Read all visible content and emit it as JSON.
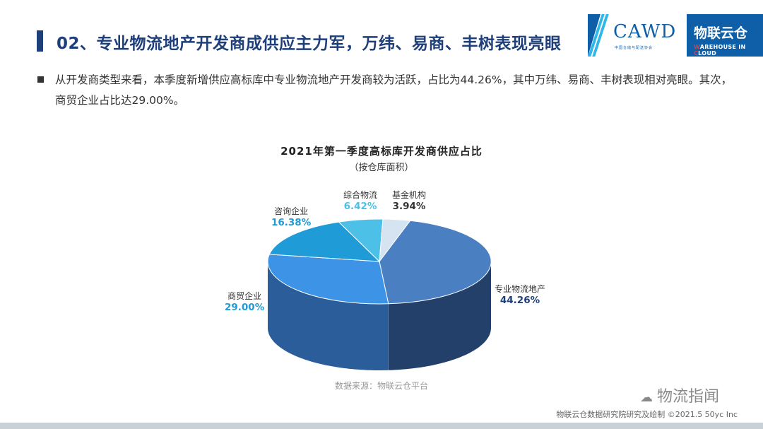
{
  "header": {
    "title": "02、专业物流地产开发商成供应主力军，万纬、易商、丰树表现亮眼"
  },
  "logo": {
    "cawd": "CAWD",
    "cawd_sub": "中国仓储与配送协会",
    "brand": "物联云仓",
    "brand_sub_a": "W",
    "brand_sub_b": "AREHOUSE IN ",
    "brand_sub_c": "C",
    "brand_sub_d": "LOUD"
  },
  "bullet": {
    "text": "从开发商类型来看，本季度新增供应高标库中专业物流地产开发商较为活跃，占比为44.26%，其中万纬、易商、丰树表现相对亮眼。其次，商贸企业占比达29.00%。"
  },
  "chart_data": {
    "type": "pie",
    "title": "2021年第一季度高标库开发商供应占比",
    "subtitle": "（按仓库面积）",
    "slices": [
      {
        "label": "专业物流地产",
        "value": 44.26,
        "display": "44.26%",
        "color": "#4a7fc1",
        "side": "#23406b"
      },
      {
        "label": "商贸企业",
        "value": 29.0,
        "display": "29.00%",
        "color": "#3d93e6",
        "side": "#2a5d9a"
      },
      {
        "label": "咨询企业",
        "value": 16.38,
        "display": "16.38%",
        "color": "#1f9bd8",
        "side": "#176f9b"
      },
      {
        "label": "综合物流",
        "value": 6.42,
        "display": "6.42%",
        "color": "#4cc0e6",
        "side": "#338aa6"
      },
      {
        "label": "基金机构",
        "value": 3.94,
        "display": "3.94%",
        "color": "#d6e3f0",
        "side": "#9aabbd"
      }
    ]
  },
  "source": "数据来源：物联云仓平台",
  "watermark": "物流指闻",
  "footer": "物联云仓数据研究院研究及绘制    ©2021.5 50yc Inc",
  "colors": {
    "title": "#1e3f7a",
    "logo_bg": "#0f5fa8",
    "label_blue": "#1f9bd8",
    "label_navy": "#1e3f7a"
  }
}
